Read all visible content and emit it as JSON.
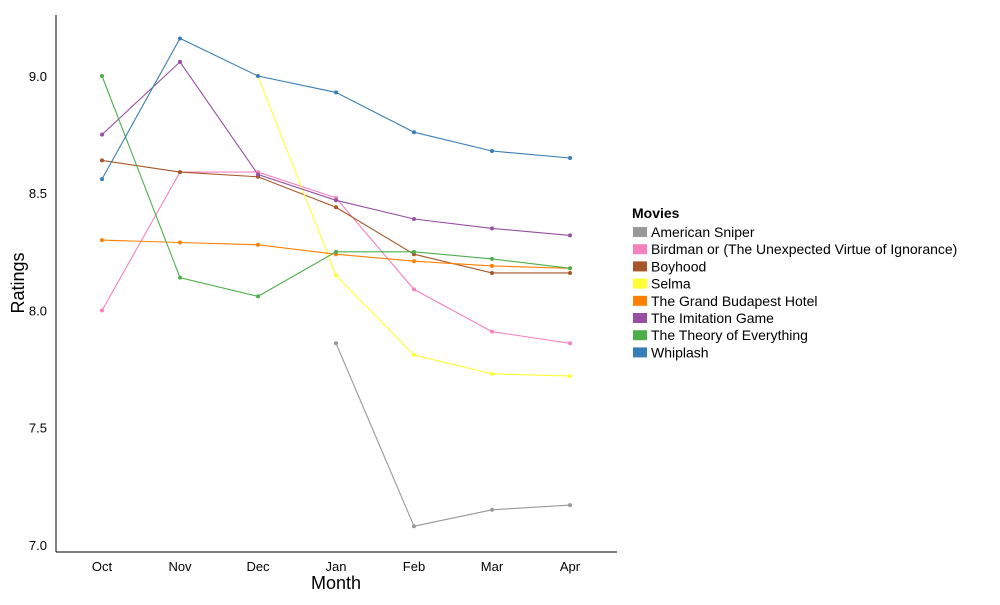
{
  "chart_data": {
    "type": "line",
    "title": "",
    "xlabel": "Month",
    "ylabel": "Ratings",
    "categories": [
      "Oct",
      "Nov",
      "Dec",
      "Jan",
      "Feb",
      "Mar",
      "Apr"
    ],
    "ylim": [
      6.97,
      9.26
    ],
    "yticks": [
      "7.0",
      "7.5",
      "8.0",
      "8.5",
      "9.0"
    ],
    "grid": false,
    "legend": {
      "title": "Movies",
      "position": "right"
    },
    "series": [
      {
        "name": "American Sniper",
        "color": "#999999",
        "values": [
          null,
          null,
          null,
          7.86,
          7.08,
          7.15,
          7.17
        ]
      },
      {
        "name": "Birdman or (The Unexpected Virtue of Ignorance)",
        "color": "#F781BF",
        "values": [
          8.0,
          8.59,
          8.59,
          8.48,
          8.09,
          7.91,
          7.86
        ]
      },
      {
        "name": "Boyhood",
        "color": "#A65628",
        "values": [
          8.64,
          8.59,
          8.57,
          8.44,
          8.24,
          8.16,
          8.16
        ]
      },
      {
        "name": "Selma",
        "color": "#FFFF33",
        "values": [
          null,
          null,
          9.0,
          8.15,
          7.81,
          7.73,
          7.72
        ]
      },
      {
        "name": "The Grand Budapest Hotel",
        "color": "#FF7F00",
        "values": [
          8.3,
          8.29,
          8.28,
          8.24,
          8.21,
          8.19,
          8.18
        ]
      },
      {
        "name": "The Imitation Game",
        "color": "#984EA3",
        "values": [
          8.75,
          9.06,
          8.58,
          8.47,
          8.39,
          8.35,
          8.32
        ]
      },
      {
        "name": "The Theory of Everything",
        "color": "#4DAF4A",
        "values": [
          9.0,
          8.14,
          8.06,
          8.25,
          8.25,
          8.22,
          8.18
        ]
      },
      {
        "name": "Whiplash",
        "color": "#377EB8",
        "values": [
          8.56,
          9.16,
          9.0,
          8.93,
          8.76,
          8.68,
          8.65
        ]
      }
    ]
  }
}
